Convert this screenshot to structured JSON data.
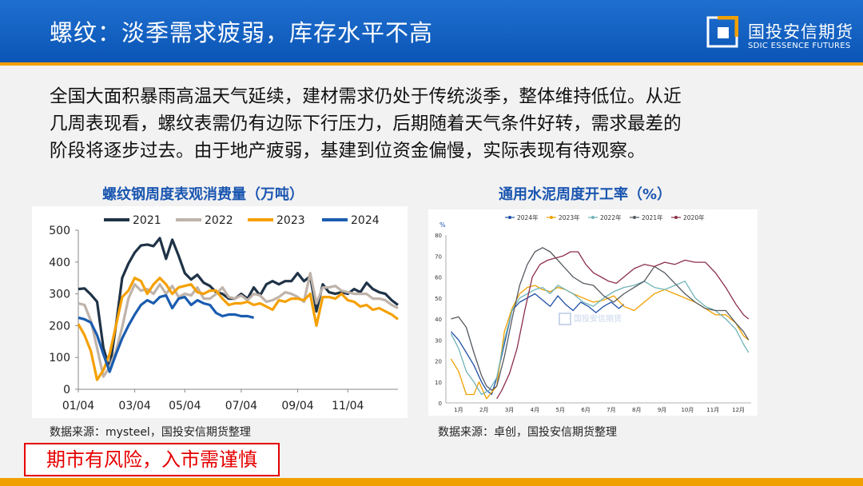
{
  "header": {
    "title": "螺纹：淡季需求疲弱，库存水平不高",
    "logo_cn": "国投安信期货",
    "logo_en": "SDIC ESSENCE FUTURES"
  },
  "intro": [
    "全国大面积暴雨高温天气延续，建材需求仍处于传统淡季，整体维持低位。从近",
    "几周表现看，螺纹表需仍有边际下行压力，后期随着天气条件好转，需求最差的",
    "阶段将逐步过去。由于地产疲弱，基建到位资金偏慢，实际表现有待观察。"
  ],
  "risk_notice": "期市有风险，入市需谨慎",
  "colors": {
    "header": "#0a55b5",
    "accent": "#f0a000",
    "risk": "#e60000"
  },
  "chart_data": [
    {
      "type": "line",
      "title": "螺纹钢周度表观消费量（万吨）",
      "source": "数据来源：mysteel，国投安信期货整理",
      "ylim": [
        0,
        500
      ],
      "yticks": [
        0,
        100,
        200,
        300,
        400,
        500
      ],
      "xlim": [
        1,
        52
      ],
      "xticks": [
        {
          "w": 1,
          "label": "01/04"
        },
        {
          "w": 10,
          "label": "03/04"
        },
        {
          "w": 18,
          "label": "05/04"
        },
        {
          "w": 27,
          "label": "07/04"
        },
        {
          "w": 36,
          "label": "09/04"
        },
        {
          "w": 44,
          "label": "11/04"
        }
      ],
      "legend": "top",
      "series": [
        {
          "name": "2021",
          "color": "#1f3347",
          "values": [
            315,
            317,
            298,
            275,
            130,
            65,
            200,
            350,
            395,
            430,
            452,
            455,
            450,
            475,
            410,
            470,
            420,
            365,
            345,
            360,
            335,
            325,
            305,
            300,
            285,
            285,
            300,
            285,
            320,
            295,
            330,
            340,
            330,
            340,
            340,
            365,
            340,
            355,
            245,
            330,
            305,
            300,
            305,
            300,
            315,
            305,
            335,
            315,
            305,
            300,
            280,
            265
          ]
        },
        {
          "name": "2022",
          "color": "#bfb3aa",
          "values": [
            270,
            265,
            215,
            130,
            40,
            70,
            120,
            195,
            285,
            330,
            310,
            315,
            300,
            330,
            300,
            325,
            290,
            300,
            295,
            320,
            285,
            285,
            300,
            320,
            290,
            285,
            295,
            280,
            300,
            295,
            275,
            280,
            290,
            305,
            300,
            290,
            275,
            365,
            270,
            320,
            320,
            325,
            310,
            305,
            300,
            300,
            300,
            285,
            285,
            280,
            265,
            255
          ]
        },
        {
          "name": "2023",
          "color": "#f5a000",
          "values": [
            205,
            170,
            120,
            30,
            60,
            110,
            200,
            290,
            310,
            350,
            340,
            300,
            330,
            350,
            330,
            300,
            320,
            325,
            330,
            305,
            300,
            310,
            310,
            285,
            265,
            270,
            270,
            275,
            265,
            270,
            260,
            250,
            280,
            275,
            285,
            285,
            280,
            300,
            200,
            290,
            290,
            285,
            300,
            280,
            275,
            260,
            265,
            250,
            255,
            245,
            235,
            220
          ]
        },
        {
          "name": "2024",
          "color": "#1a5cb0",
          "values": [
            225,
            220,
            210,
            170,
            110,
            55,
            110,
            160,
            200,
            235,
            265,
            280,
            270,
            290,
            295,
            255,
            285,
            290,
            265,
            280,
            270,
            265,
            240,
            230,
            235,
            235,
            230,
            230,
            225
          ]
        }
      ]
    },
    {
      "type": "line",
      "title": "通用水泥周度开工率（%）",
      "source": "数据来源：卓创，国投安信期货整理",
      "unit": "%",
      "ylim": [
        0,
        80
      ],
      "yticks": [
        0,
        10,
        20,
        30,
        40,
        50,
        60,
        70,
        80
      ],
      "xlim": [
        0,
        12
      ],
      "xticks": [
        "1月",
        "2月",
        "3月",
        "4月",
        "5月",
        "6月",
        "7月",
        "8月",
        "9月",
        "10月",
        "11月",
        "12月"
      ],
      "legend": "top",
      "series": [
        {
          "name": "2024年",
          "color": "#1f4fa8",
          "x": [
            0.2,
            0.5,
            0.8,
            1.1,
            1.4,
            1.6,
            1.8,
            2.0,
            2.3,
            2.6,
            2.9,
            3.2,
            3.5,
            3.8,
            4.1,
            4.4,
            4.7,
            5.0,
            5.3,
            5.6,
            5.9,
            6.2,
            6.5,
            6.8,
            7.0
          ],
          "values": [
            34,
            30,
            24,
            18,
            10,
            6,
            4,
            12,
            28,
            44,
            48,
            50,
            52,
            49,
            46,
            51,
            47,
            44,
            48,
            46,
            43,
            46,
            48,
            45,
            47
          ]
        },
        {
          "name": "2023年",
          "color": "#f0a000",
          "x": [
            0.2,
            0.5,
            0.8,
            1.1,
            1.3,
            1.6,
            1.8,
            2.0,
            2.3,
            2.6,
            2.9,
            3.2,
            3.5,
            3.8,
            4.1,
            4.4,
            4.7,
            5.0,
            5.4,
            5.8,
            6.2,
            6.6,
            7.0,
            7.4,
            7.8,
            8.2,
            8.6,
            9.0,
            9.4,
            9.8,
            10.2,
            10.6,
            11.0,
            11.4,
            11.7,
            11.9
          ],
          "values": [
            21,
            15,
            4,
            4,
            10,
            2,
            5,
            8,
            34,
            45,
            52,
            55,
            56,
            54,
            53,
            55,
            54,
            52,
            50,
            48,
            49,
            51,
            46,
            44,
            48,
            52,
            54,
            52,
            50,
            48,
            45,
            42,
            42,
            38,
            32,
            30
          ]
        },
        {
          "name": "2022年",
          "color": "#6fb3b8",
          "x": [
            0.2,
            0.5,
            0.8,
            1.1,
            1.4,
            1.7,
            2.0,
            2.3,
            2.6,
            2.9,
            3.2,
            3.5,
            3.8,
            4.1,
            4.4,
            4.7,
            5.0,
            5.4,
            5.8,
            6.2,
            6.6,
            7.0,
            7.4,
            7.8,
            8.2,
            8.6,
            9.0,
            9.4,
            9.8,
            10.2,
            10.6,
            11.0,
            11.4,
            11.7,
            11.9
          ],
          "values": [
            33,
            26,
            15,
            10,
            4,
            6,
            12,
            30,
            44,
            50,
            52,
            54,
            55,
            52,
            56,
            54,
            52,
            48,
            46,
            50,
            53,
            55,
            56,
            58,
            55,
            54,
            56,
            58,
            50,
            46,
            44,
            40,
            35,
            28,
            24
          ]
        },
        {
          "name": "2021年",
          "color": "#555a60",
          "x": [
            0.2,
            0.5,
            0.8,
            1.1,
            1.4,
            1.6,
            1.8,
            2.0,
            2.3,
            2.6,
            2.9,
            3.2,
            3.5,
            3.8,
            4.1,
            4.4,
            4.7,
            5.0,
            5.4,
            5.8,
            6.2,
            6.6,
            7.0,
            7.4,
            7.8,
            8.2,
            8.6,
            9.0,
            9.4,
            9.8,
            10.2,
            10.6,
            11.0,
            11.4,
            11.7,
            11.9
          ],
          "values": [
            40,
            41,
            36,
            24,
            13,
            8,
            6,
            8,
            22,
            40,
            56,
            66,
            72,
            74,
            72,
            68,
            64,
            60,
            57,
            56,
            51,
            48,
            52,
            55,
            58,
            65,
            62,
            57,
            52,
            48,
            45,
            44,
            44,
            38,
            34,
            30
          ]
        },
        {
          "name": "2020年",
          "color": "#8b2e4a",
          "x": [
            2.0,
            2.2,
            2.5,
            2.8,
            3.1,
            3.4,
            3.7,
            4.0,
            4.3,
            4.6,
            4.9,
            5.2,
            5.5,
            5.8,
            6.1,
            6.4,
            6.7,
            7.0,
            7.4,
            7.8,
            8.2,
            8.6,
            9.0,
            9.4,
            9.8,
            10.2,
            10.6,
            11.0,
            11.4,
            11.7,
            11.9
          ],
          "values": [
            2,
            6,
            14,
            26,
            44,
            60,
            66,
            68,
            69,
            70,
            72,
            72,
            66,
            62,
            60,
            58,
            57,
            60,
            64,
            66,
            65,
            67,
            66,
            68,
            67,
            67,
            62,
            55,
            47,
            42,
            40
          ]
        }
      ]
    }
  ]
}
